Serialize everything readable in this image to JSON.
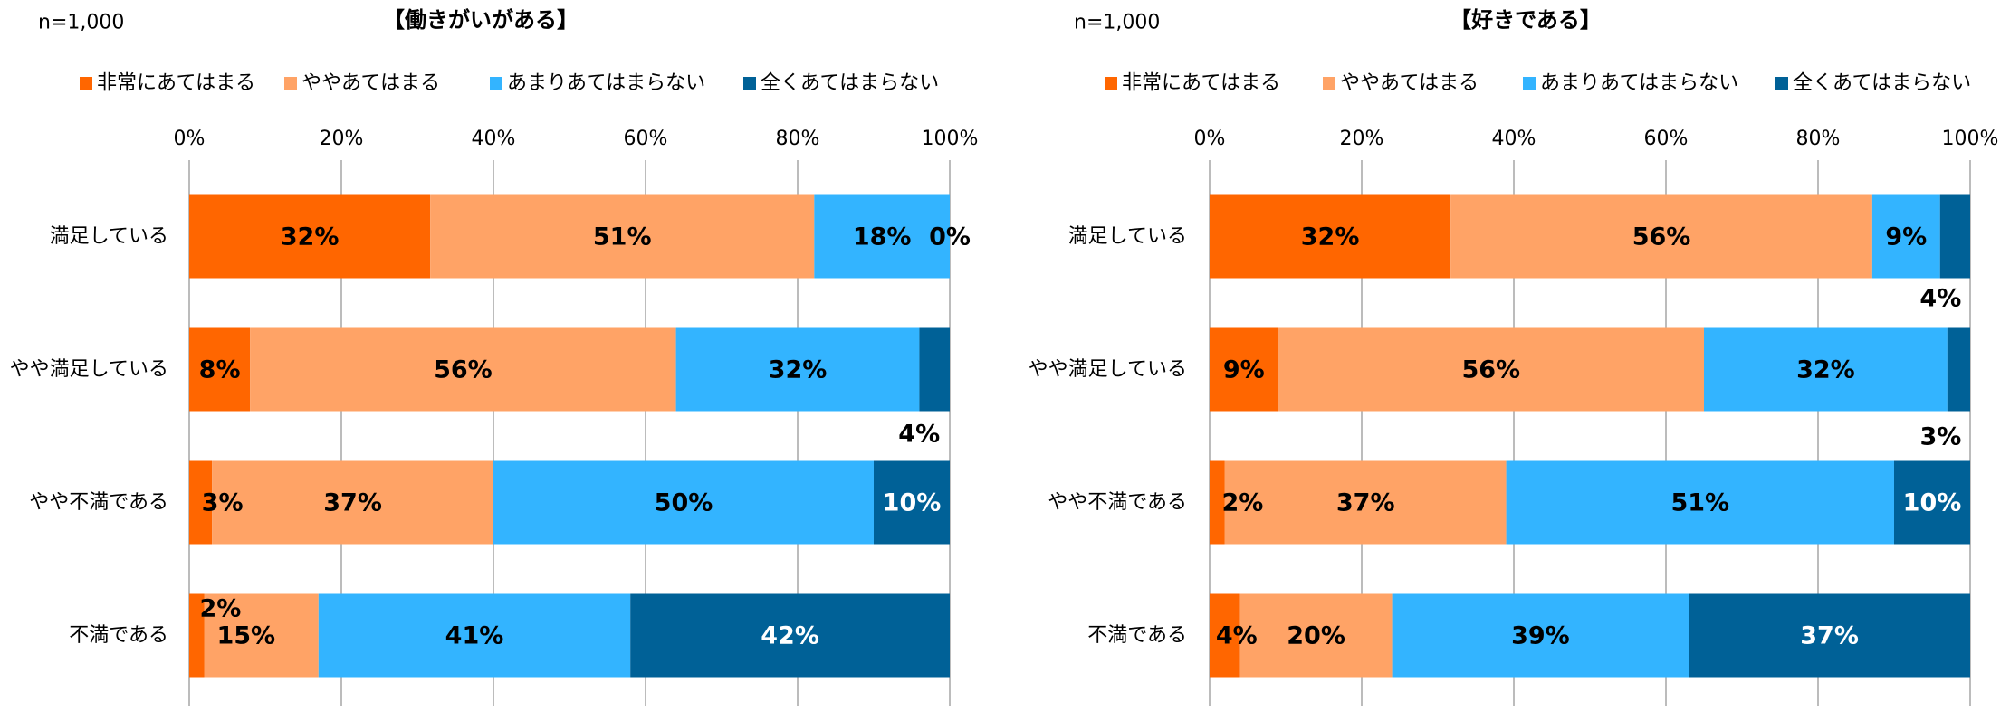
{
  "chart_data": [
    {
      "type": "bar",
      "orientation": "horizontal",
      "stacking": "percent",
      "note": "n=1,000",
      "title": "【働きがいがある】",
      "categories": [
        "満足している",
        "やや満足している",
        "やや不満である",
        "不満である"
      ],
      "series": [
        {
          "name": "非常にあてはまる",
          "values": [
            32,
            8,
            3,
            2
          ],
          "color": "#FF6600",
          "label_color": "#000000"
        },
        {
          "name": "ややあてはまる",
          "values": [
            51,
            56,
            37,
            15
          ],
          "color": "#FFA366",
          "label_color": "#000000"
        },
        {
          "name": "あまりあてはまらない",
          "values": [
            18,
            32,
            50,
            41
          ],
          "color": "#33B4FF",
          "label_color": "#000000"
        },
        {
          "name": "全くあてはまらない",
          "values": [
            0,
            4,
            10,
            42
          ],
          "color": "#006197",
          "label_color": "#FFFFFF"
        }
      ],
      "unit": "%",
      "xticks": [
        0,
        20,
        40,
        60,
        80,
        100
      ],
      "xlim": [
        0,
        100
      ],
      "grid": "vertical",
      "legend": "top"
    },
    {
      "type": "bar",
      "orientation": "horizontal",
      "stacking": "percent",
      "note": "n=1,000",
      "title": "【好きである】",
      "categories": [
        "満足している",
        "やや満足している",
        "やや不満である",
        "不満である"
      ],
      "series": [
        {
          "name": "非常にあてはまる",
          "values": [
            32,
            9,
            2,
            4
          ],
          "color": "#FF6600",
          "label_color": "#000000"
        },
        {
          "name": "ややあてはまる",
          "values": [
            56,
            56,
            37,
            20
          ],
          "color": "#FFA366",
          "label_color": "#000000"
        },
        {
          "name": "あまりあてはまらない",
          "values": [
            9,
            32,
            51,
            39
          ],
          "color": "#33B4FF",
          "label_color": "#000000"
        },
        {
          "name": "全くあてはまらない",
          "values": [
            4,
            3,
            10,
            37
          ],
          "color": "#006197",
          "label_color": "#FFFFFF"
        }
      ],
      "unit": "%",
      "xticks": [
        0,
        20,
        40,
        60,
        80,
        100
      ],
      "xlim": [
        0,
        100
      ],
      "grid": "vertical",
      "legend": "top"
    }
  ]
}
